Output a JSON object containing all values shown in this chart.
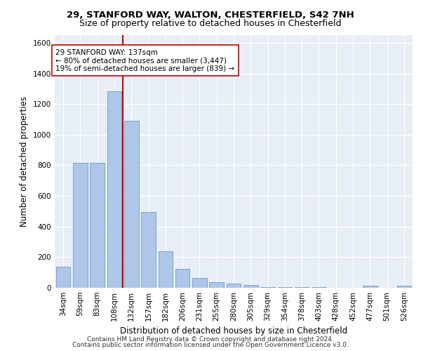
{
  "title_line1": "29, STANFORD WAY, WALTON, CHESTERFIELD, S42 7NH",
  "title_line2": "Size of property relative to detached houses in Chesterfield",
  "xlabel": "Distribution of detached houses by size in Chesterfield",
  "ylabel": "Number of detached properties",
  "categories": [
    "34sqm",
    "59sqm",
    "83sqm",
    "108sqm",
    "132sqm",
    "157sqm",
    "182sqm",
    "206sqm",
    "231sqm",
    "255sqm",
    "280sqm",
    "305sqm",
    "329sqm",
    "354sqm",
    "378sqm",
    "403sqm",
    "428sqm",
    "452sqm",
    "477sqm",
    "501sqm",
    "526sqm"
  ],
  "values": [
    137,
    815,
    815,
    1285,
    1090,
    493,
    237,
    125,
    65,
    38,
    27,
    17,
    6,
    6,
    6,
    3,
    0,
    0,
    13,
    0,
    13
  ],
  "bar_color": "#aec6e8",
  "bar_edge_color": "#5a8fc0",
  "vline_color": "#cc0000",
  "vline_x_index": 4,
  "annotation_line1": "29 STANFORD WAY: 137sqm",
  "annotation_line2": "← 80% of detached houses are smaller (3,447)",
  "annotation_line3": "19% of semi-detached houses are larger (839) →",
  "annotation_box_color": "#ffffff",
  "annotation_box_edge": "#cc0000",
  "ylim": [
    0,
    1650
  ],
  "yticks": [
    0,
    200,
    400,
    600,
    800,
    1000,
    1200,
    1400,
    1600
  ],
  "bg_color": "#e8eef5",
  "footer_line1": "Contains HM Land Registry data © Crown copyright and database right 2024.",
  "footer_line2": "Contains public sector information licensed under the Open Government Licence v3.0.",
  "title_fontsize": 9.5,
  "subtitle_fontsize": 9,
  "axis_label_fontsize": 8.5,
  "tick_fontsize": 7.5,
  "annotation_fontsize": 7.5,
  "footer_fontsize": 6.5
}
